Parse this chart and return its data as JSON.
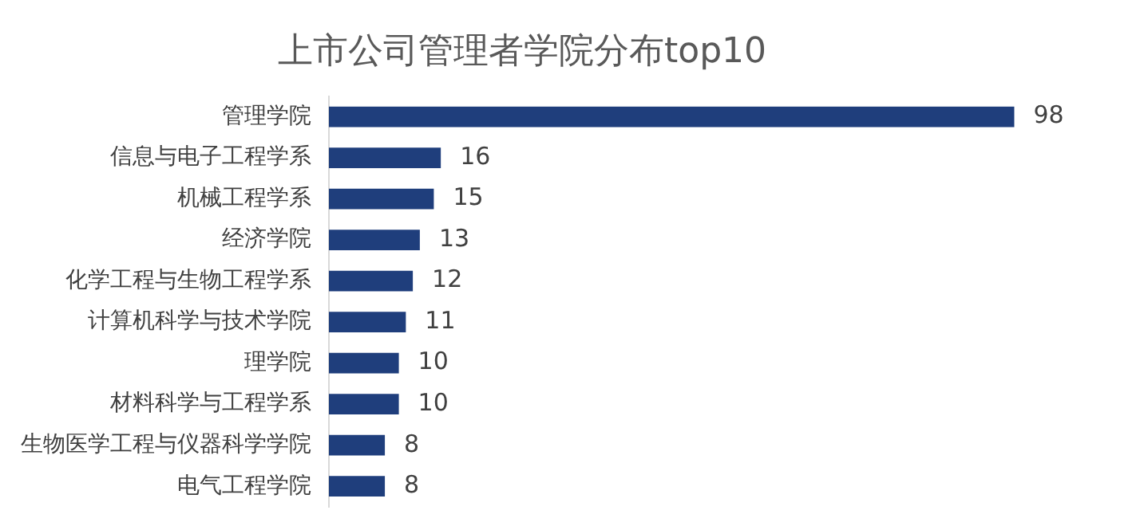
{
  "chart_data": {
    "type": "bar",
    "orientation": "horizontal",
    "title": "上市公司管理者学院分布top10",
    "categories": [
      "管理学院",
      "信息与电子工程学系",
      "机械工程学系",
      "经济学院",
      "化学工程与生物工程学系",
      "计算机科学与技术学院",
      "理学院",
      "材料科学与工程学系",
      "生物医学工程与仪器科学学院",
      "电气工程学院"
    ],
    "values": [
      98,
      16,
      15,
      13,
      12,
      11,
      10,
      10,
      8,
      8
    ],
    "color": "#1f3e7c",
    "data_labels": true,
    "tick_labels": "y",
    "legend": false
  }
}
